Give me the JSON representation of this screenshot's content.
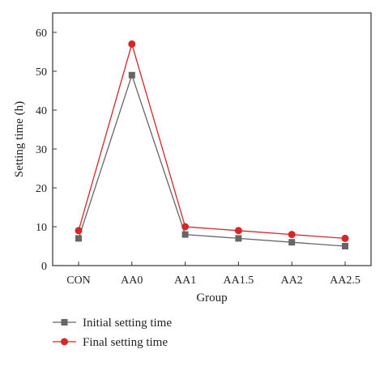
{
  "chart_data": {
    "type": "line",
    "xlabel": "Group",
    "ylabel": "Setting time (h)",
    "categories": [
      "CON",
      "AA0",
      "AA1",
      "AA1.5",
      "AA2",
      "AA2.5"
    ],
    "ylim": [
      0,
      65
    ],
    "yticks": [
      0,
      10,
      20,
      30,
      40,
      50,
      60
    ],
    "grid": false,
    "legend_position": "bottom-left",
    "series": [
      {
        "name": "Initial setting time",
        "values": [
          7,
          49,
          8,
          7,
          6,
          5
        ],
        "color": "#666666",
        "marker": "square"
      },
      {
        "name": "Final setting time",
        "values": [
          9,
          57,
          10,
          9,
          8,
          7
        ],
        "color": "#d62728",
        "marker": "circle"
      }
    ]
  }
}
